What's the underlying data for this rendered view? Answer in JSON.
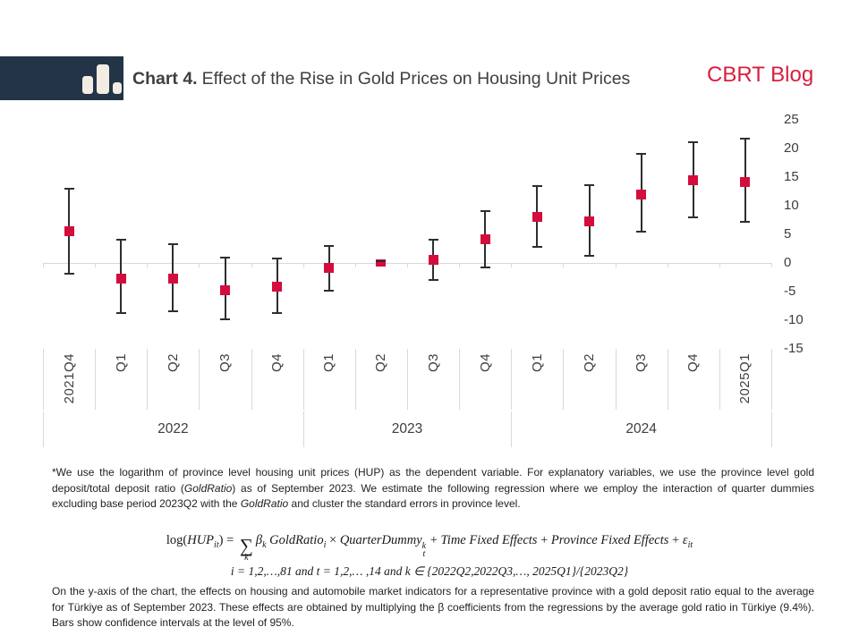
{
  "header": {
    "chart_label": "Chart 4.",
    "title": "Effect of the Rise in Gold Prices on Housing Unit Prices",
    "brand": "CBRT Blog",
    "logo_icon": "bar-chart-icon",
    "colors": {
      "navy": "#233447",
      "red": "#d91e3f"
    }
  },
  "chart_data": {
    "type": "scatter",
    "subtype": "point-estimates-with-95pct-confidence-intervals",
    "categories": [
      "2021Q4",
      "Q1",
      "Q2",
      "Q3",
      "Q4",
      "Q1",
      "Q2",
      "Q3",
      "Q4",
      "Q1",
      "Q2",
      "Q3",
      "Q4",
      "2025Q1"
    ],
    "year_groups": [
      {
        "label": "2022",
        "start": 0,
        "end": 5
      },
      {
        "label": "2023",
        "start": 5,
        "end": 9
      },
      {
        "label": "2024",
        "start": 9,
        "end": 14
      }
    ],
    "points": [
      {
        "quarter": "2021Q4",
        "value": 5.5,
        "ci_low": -1.9,
        "ci_high": 13.0
      },
      {
        "quarter": "2022Q1",
        "value": -2.7,
        "ci_low": -8.8,
        "ci_high": 4.1
      },
      {
        "quarter": "2022Q2",
        "value": -2.8,
        "ci_low": -8.4,
        "ci_high": 3.3
      },
      {
        "quarter": "2022Q3",
        "value": -4.7,
        "ci_low": -9.8,
        "ci_high": 0.9
      },
      {
        "quarter": "2022Q4",
        "value": -4.1,
        "ci_low": -8.8,
        "ci_high": 0.8
      },
      {
        "quarter": "2023Q1",
        "value": -0.9,
        "ci_low": -4.8,
        "ci_high": 3.0
      },
      {
        "quarter": "2023Q2",
        "value": 0.0,
        "ci_low": 0.0,
        "ci_high": 0.0,
        "base_period": true
      },
      {
        "quarter": "2023Q3",
        "value": 0.5,
        "ci_low": -3.0,
        "ci_high": 4.1
      },
      {
        "quarter": "2023Q4",
        "value": 4.2,
        "ci_low": -0.8,
        "ci_high": 9.1
      },
      {
        "quarter": "2024Q1",
        "value": 8.0,
        "ci_low": 2.8,
        "ci_high": 13.4
      },
      {
        "quarter": "2024Q2",
        "value": 7.3,
        "ci_low": 1.3,
        "ci_high": 13.6
      },
      {
        "quarter": "2024Q3",
        "value": 12.0,
        "ci_low": 5.5,
        "ci_high": 19.1
      },
      {
        "quarter": "2024Q4",
        "value": 14.4,
        "ci_low": 8.0,
        "ci_high": 21.1
      },
      {
        "quarter": "2025Q1",
        "value": 14.2,
        "ci_low": 7.2,
        "ci_high": 21.7
      }
    ],
    "y_axis": {
      "min": -15,
      "max": 25,
      "step": 5,
      "side": "right",
      "ticks": [
        "25",
        "20",
        "15",
        "10",
        "5",
        "0",
        "-5",
        "-10",
        "-15"
      ]
    },
    "grid": "zero-line-only",
    "marker_color": "#d40d3c",
    "errorbar_color": "#2e2e2e",
    "axis_color": "#d9d9d9",
    "legend": "none"
  },
  "footnote": {
    "parts": [
      {
        "t": "*We use the logarithm of province level housing unit prices (HUP) as the dependent variable. For explanatory variables, we use the province level gold deposit/total deposit ratio (",
        "i": false
      },
      {
        "t": "GoldRatio",
        "i": true
      },
      {
        "t": ") as of September 2023. We estimate the following regression where we employ the interaction of quarter dummies excluding base period 2023Q2 with the ",
        "i": false
      },
      {
        "t": "GoldRatio",
        "i": true
      },
      {
        "t": " and cluster the standard errors in province level.",
        "i": false
      }
    ]
  },
  "formula": {
    "line1_tokens": [
      {
        "t": "log(",
        "s": "rm"
      },
      {
        "t": "HUP",
        "s": "it"
      },
      {
        "t": "it",
        "s": "sub"
      },
      {
        "t": ") = ",
        "s": "rm"
      },
      {
        "t": "∑",
        "s": "sum",
        "under": "k"
      },
      {
        "t": "β",
        "s": "it"
      },
      {
        "t": "k",
        "s": "sub"
      },
      {
        "t": " GoldRatio",
        "s": "it"
      },
      {
        "t": "i",
        "s": "sub"
      },
      {
        "t": " × ",
        "s": "rm"
      },
      {
        "t": "QuarterDummy",
        "s": "it"
      },
      {
        "t": "",
        "s": "supsub",
        "sup": "k",
        "sub": "t"
      },
      {
        "t": " + ",
        "s": "rm"
      },
      {
        "t": "Time Fixed Effects",
        "s": "it"
      },
      {
        "t": " + ",
        "s": "rm"
      },
      {
        "t": "Province Fixed Effects",
        "s": "it"
      },
      {
        "t": " + ",
        "s": "rm"
      },
      {
        "t": "ε",
        "s": "it"
      },
      {
        "t": "it",
        "s": "sub"
      }
    ],
    "line2": "i = 1,2,…,81 and t = 1,2,… ,14 and k ∈ {2022Q2,2022Q3,…, 2025Q1}/{2023Q2}"
  },
  "para": {
    "text": "On the y-axis of the chart, the effects on housing and automobile market indicators for a representative province with a gold deposit ratio equal to the average for Türkiye as of September 2023. These effects are obtained by multiplying the β coefficients from the regressions by the average gold ratio in Türkiye (9.4%). Bars show confidence intervals at the level of 95%."
  }
}
